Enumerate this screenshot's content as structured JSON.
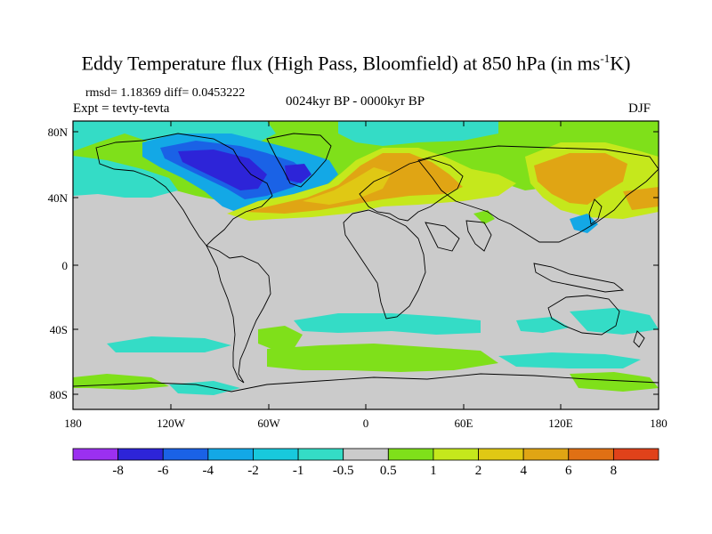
{
  "header": {
    "title_main": "Eddy Temperature flux (High Pass, Bloomfield) at 850 hPa (in ms",
    "title_sup": "-1",
    "title_end": "K)",
    "stats": "rmsd= 1.18369 diff= 0.0453222",
    "expt": "Expt = tevty-tevta",
    "period": "0024kyr BP - 0000kyr BP",
    "season": "DJF"
  },
  "axes": {
    "y_ticks": [
      "80N",
      "40N",
      "0",
      "40S",
      "80S"
    ],
    "x_ticks": [
      "180",
      "120W",
      "60W",
      "0",
      "60E",
      "120E",
      "180"
    ]
  },
  "colorbar": {
    "colors": [
      "#9b30f0",
      "#2d24d8",
      "#1a62e6",
      "#13a8e6",
      "#18c9dc",
      "#34dcc6",
      "#cbcbcb",
      "#7fe01a",
      "#c5e81c",
      "#e0c814",
      "#e0a514",
      "#e07014",
      "#e0421a"
    ],
    "labels": [
      "-8",
      "-6",
      "-4",
      "-2",
      "-1",
      "-0.5",
      "0.5",
      "1",
      "2",
      "4",
      "6",
      "8"
    ]
  },
  "map": {
    "background_color": "#cbcbcb"
  }
}
